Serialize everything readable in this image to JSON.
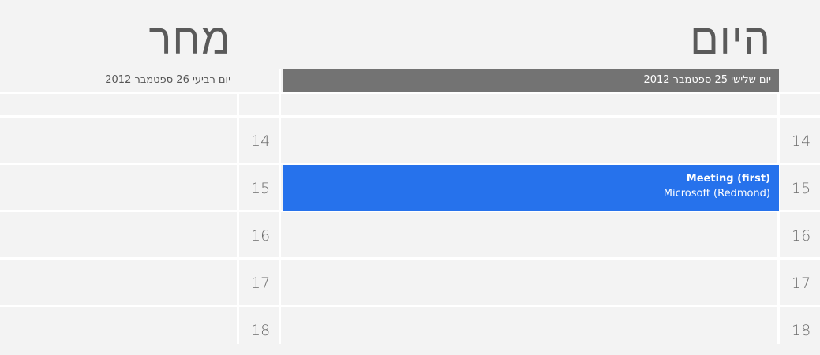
{
  "today": {
    "title": "היום",
    "date_label": "יום שלישי 25 ספטמבר 2012",
    "hours": [
      "14",
      "15",
      "16",
      "17",
      "18"
    ],
    "event": {
      "title": "Meeting (first)",
      "location": "Microsoft (Redmond)",
      "color": "#2672ec"
    }
  },
  "tomorrow": {
    "title": "מחר",
    "date_label": "יום רביעי 26 ספטמבר 2012",
    "hours": [
      "14",
      "15",
      "16",
      "17",
      "18"
    ]
  },
  "colors": {
    "background": "#f3f3f3",
    "today_header": "#737373",
    "grid_lines": "#ffffff"
  }
}
